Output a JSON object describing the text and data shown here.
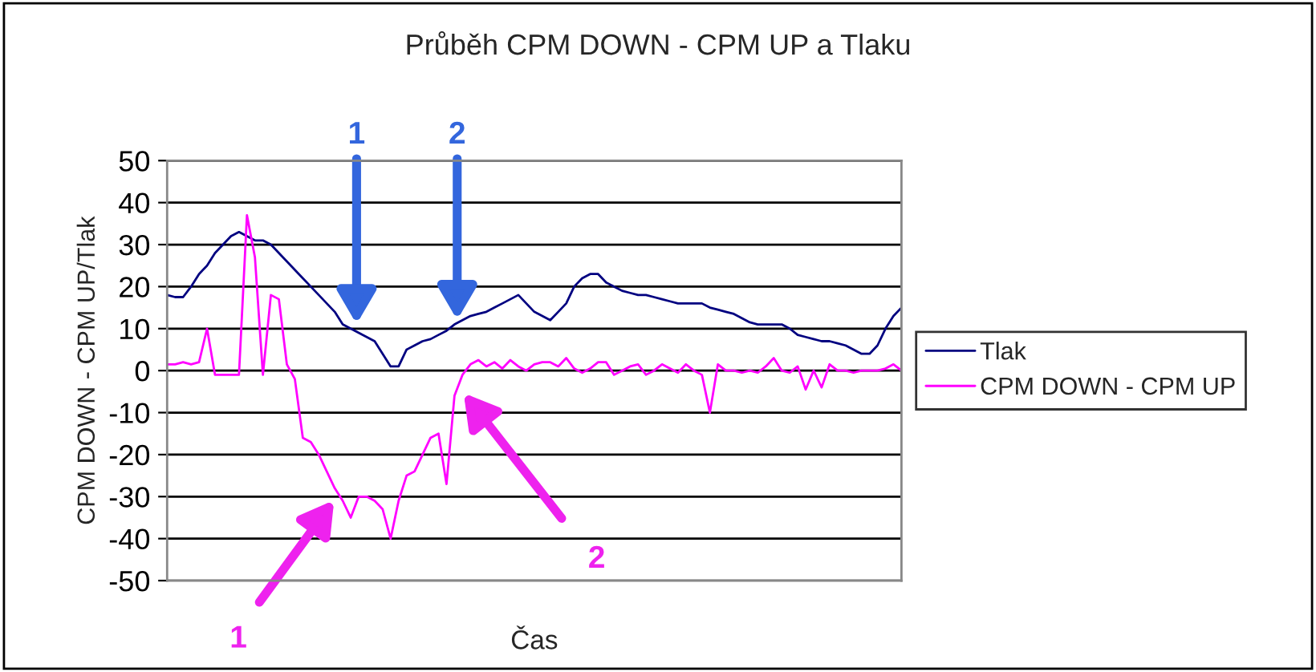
{
  "chart_data": {
    "type": "line",
    "title": "Průběh CPM DOWN - CPM UP a Tlaku",
    "xlabel": "Čas",
    "ylabel": "CPM DOWN - CPM UP/Tlak",
    "categories": [
      null,
      null,
      null,
      null,
      null,
      null,
      null,
      null,
      null,
      null,
      null,
      null,
      null,
      null,
      null,
      null,
      null,
      null,
      null,
      null,
      null,
      null,
      null,
      null,
      null,
      null,
      null,
      null,
      null,
      null,
      null,
      null,
      null,
      null,
      null,
      null,
      null,
      null,
      null,
      null,
      null,
      null,
      null,
      null,
      null,
      null,
      null,
      null,
      null,
      null,
      null,
      null,
      null,
      null,
      null,
      null,
      null,
      null,
      null,
      null,
      null,
      null,
      null,
      null,
      null,
      null,
      null,
      null,
      null,
      null,
      null,
      null,
      null,
      null,
      null,
      null,
      null,
      null,
      null,
      null,
      null,
      null,
      null,
      null,
      null,
      null,
      null,
      null,
      null,
      null,
      null,
      null,
      null
    ],
    "series": [
      {
        "name": "Tlak",
        "color": "#000080",
        "values": [
          18,
          17.5,
          17.5,
          20,
          23,
          25,
          28,
          30,
          32,
          33,
          32,
          31,
          31,
          30,
          28,
          26,
          24,
          22,
          20,
          18,
          16,
          14,
          11,
          10,
          9,
          8,
          7,
          4,
          1,
          1,
          5,
          6,
          7,
          7.5,
          8.5,
          9.5,
          11,
          12,
          13,
          13.5,
          14,
          15,
          16,
          17,
          18,
          16,
          14,
          13,
          12,
          14,
          16,
          20,
          22,
          23,
          23,
          21,
          20,
          19,
          18.5,
          18,
          18,
          17.5,
          17,
          16.5,
          16,
          16,
          16,
          16,
          15,
          14.5,
          14,
          13.5,
          12.5,
          11.5,
          11,
          11,
          11,
          11,
          10,
          8.5,
          8,
          7.5,
          7,
          7,
          6.5,
          6,
          5,
          4,
          4,
          6,
          10,
          13,
          15
        ]
      },
      {
        "name": "CPM DOWN - CPM UP",
        "color": "#ff00ff",
        "values": [
          1.5,
          1.5,
          2,
          1.5,
          2,
          10,
          -1,
          -1,
          -1,
          -1,
          37,
          27,
          -1,
          18,
          17,
          1.5,
          -2,
          -16,
          -17,
          -20,
          -24,
          -28,
          -31,
          -35,
          -30,
          -30,
          -31,
          -33,
          -40,
          -31,
          -25,
          -24,
          -20,
          -16,
          -15,
          -27,
          -6,
          -1,
          1.5,
          2.5,
          1,
          2,
          0.5,
          2.5,
          1,
          0,
          1.5,
          2,
          2,
          1,
          3,
          0.5,
          -0.5,
          0.5,
          2,
          2,
          -1,
          0,
          1,
          1.5,
          -1,
          0,
          1.5,
          0.5,
          -0.5,
          1.5,
          0,
          -1,
          -10,
          1.5,
          0,
          0,
          -0.5,
          0,
          -0.5,
          1,
          3,
          0,
          -0.5,
          1,
          -4.5,
          0,
          -4,
          1.5,
          0,
          0,
          -0.5,
          0,
          0,
          0,
          0.5,
          1.5,
          0
        ]
      }
    ],
    "ylim": [
      -50,
      50
    ],
    "yticks": [
      -50,
      -40,
      -30,
      -20,
      -10,
      0,
      10,
      20,
      30,
      40,
      50
    ],
    "grid": "y",
    "legend": "right",
    "tick_labels": "y",
    "marker": "none",
    "line_style": "solid",
    "annotations": [
      "1",
      "2",
      "1",
      "2"
    ]
  }
}
